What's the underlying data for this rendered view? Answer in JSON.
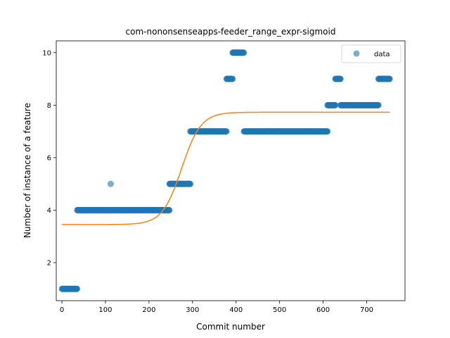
{
  "chart_data": {
    "type": "scatter",
    "title": "com-nononsenseapps-feeder_range_expr-sigmoid",
    "xlabel": "Commit number",
    "ylabel": "Number of instance of a feature",
    "xlim": [
      -13,
      788
    ],
    "ylim": [
      0.55,
      10.45
    ],
    "xticks": [
      0,
      100,
      200,
      300,
      400,
      500,
      600,
      700
    ],
    "yticks": [
      2,
      4,
      6,
      8,
      10
    ],
    "grid": false,
    "legend": {
      "placement": "top-right",
      "entries": [
        "data"
      ]
    },
    "colors": {
      "data": "#1f77b4",
      "fit": "#ff7f0e"
    },
    "series": [
      {
        "name": "data",
        "kind": "scatter",
        "segments": [
          {
            "x_start": 0,
            "x_end": 35,
            "y": 1
          },
          {
            "x_start": 35,
            "x_end": 112,
            "y": 4
          },
          {
            "x_start": 112,
            "x_end": 112,
            "y": 5
          },
          {
            "x_start": 113,
            "x_end": 247,
            "y": 4
          },
          {
            "x_start": 247,
            "x_end": 295,
            "y": 5
          },
          {
            "x_start": 295,
            "x_end": 378,
            "y": 7
          },
          {
            "x_start": 378,
            "x_end": 392,
            "y": 9
          },
          {
            "x_start": 392,
            "x_end": 418,
            "y": 10
          },
          {
            "x_start": 418,
            "x_end": 610,
            "y": 7
          },
          {
            "x_start": 610,
            "x_end": 628,
            "y": 8
          },
          {
            "x_start": 628,
            "x_end": 640,
            "y": 9
          },
          {
            "x_start": 640,
            "x_end": 727,
            "y": 8
          },
          {
            "x_start": 727,
            "x_end": 753,
            "y": 9
          }
        ]
      },
      {
        "name": "",
        "kind": "line",
        "model": "sigmoid",
        "params": {
          "lower": 3.45,
          "upper": 7.73,
          "midpoint": 275,
          "rate": 0.045
        },
        "x_range": [
          0,
          753
        ]
      }
    ]
  }
}
